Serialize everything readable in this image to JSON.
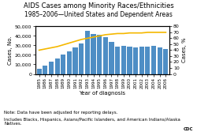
{
  "chart_data": {
    "type": "bar",
    "title": "AIDS Cases among Minority Races/Ethnicities",
    "subtitle": "1985–2006—United States and Dependent Areas",
    "x_label": "Year of diagnosis",
    "y_label": "Cases, No.",
    "y2_label": "Cases, %",
    "categories": [
      "1985",
      "1986",
      "1987",
      "1988",
      "1989",
      "1990",
      "1991",
      "1992",
      "1993",
      "1994",
      "1995",
      "1996",
      "1997",
      "1998",
      "1999",
      "2000",
      "2001",
      "2002",
      "2003",
      "2004",
      "2005",
      "2006"
    ],
    "series": [
      {
        "type": "bar",
        "color": "#4e8ec5",
        "values": [
          5200,
          8800,
          12500,
          16500,
          20500,
          24000,
          28000,
          32000,
          45000,
          42000,
          41000,
          39000,
          33500,
          28500,
          29500,
          29000,
          28000,
          28500,
          28500,
          29500,
          27500,
          26500
        ]
      },
      {
        "type": "line",
        "color": "#f5b800",
        "axis": "y2",
        "values": [
          40,
          42,
          44,
          46,
          49,
          52,
          55,
          58,
          60,
          62,
          64,
          66,
          67,
          68,
          68,
          69,
          69,
          69,
          70,
          70,
          70,
          70
        ]
      }
    ],
    "ylim": [
      0,
      50000
    ],
    "yticks": [
      0,
      {
        "value": 10000,
        "label": "10,000"
      },
      {
        "value": 20000,
        "label": "20,000"
      },
      {
        "value": 30000,
        "label": "30,000"
      },
      {
        "value": 40000,
        "label": "40,000"
      },
      {
        "value": 50000,
        "label": "50,000"
      }
    ],
    "y2lim": [
      0,
      80
    ],
    "y2ticks": [
      0,
      10,
      20,
      30,
      40,
      50,
      60,
      70,
      80
    ],
    "annotations": [
      "Note: Data have been adjusted for reporting delays.",
      "Includes Blacks, Hispanics, Asians/Pacific Islanders, and American Indians/Alaska Natives.",
      "CDC"
    ]
  }
}
